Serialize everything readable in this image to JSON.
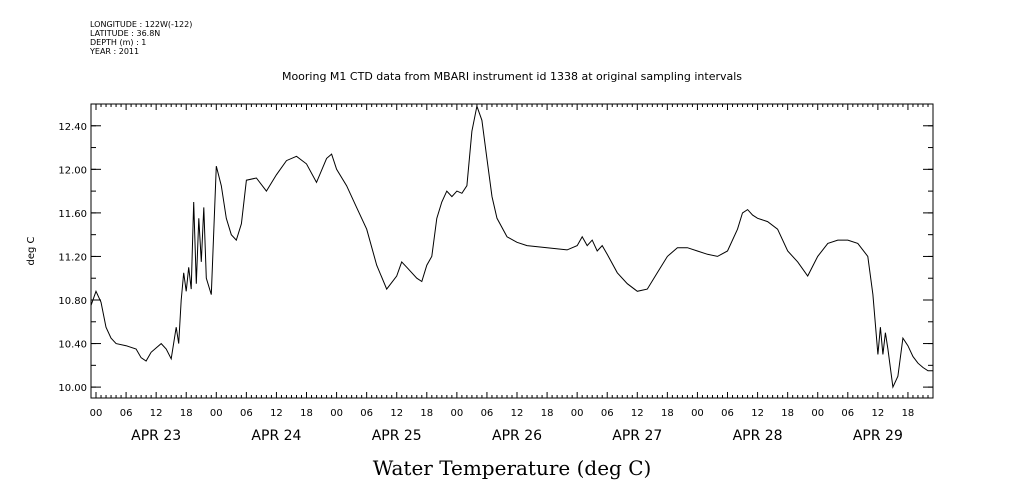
{
  "meta": {
    "longitude": "LONGITUDE : 122W(-122)",
    "latitude": "LATITUDE : 36.8N",
    "depth": "DEPTH (m) : 1",
    "year": "YEAR : 2011"
  },
  "chart_data": {
    "type": "line",
    "title": "Mooring M1 CTD data from MBARI instrument id 1338 at original sampling intervals",
    "xlabel": "Water Temperature (deg C)",
    "ylabel": "deg C",
    "ylim": [
      9.9,
      12.6
    ],
    "xlim": [
      "APR 22 23:00",
      "APR 29 23:00"
    ],
    "yticks": [
      "10.00",
      "10.40",
      "10.80",
      "11.20",
      "11.60",
      "12.00",
      "12.40"
    ],
    "xtick_hours": [
      "00",
      "06",
      "12",
      "18"
    ],
    "days": [
      "APR 23",
      "APR 24",
      "APR 25",
      "APR 26",
      "APR 27",
      "APR 28",
      "APR 29"
    ],
    "series": [
      {
        "points": [
          [
            "APR 22 23:00",
            10.75
          ],
          [
            "APR 23 00:00",
            10.88
          ],
          [
            "APR 23 01:00",
            10.78
          ],
          [
            "APR 23 02:00",
            10.55
          ],
          [
            "APR 23 03:00",
            10.45
          ],
          [
            "APR 23 04:00",
            10.4
          ],
          [
            "APR 23 06:00",
            10.38
          ],
          [
            "APR 23 08:00",
            10.35
          ],
          [
            "APR 23 09:00",
            10.27
          ],
          [
            "APR 23 10:00",
            10.24
          ],
          [
            "APR 23 11:00",
            10.32
          ],
          [
            "APR 23 12:00",
            10.36
          ],
          [
            "APR 23 13:00",
            10.4
          ],
          [
            "APR 23 14:00",
            10.35
          ],
          [
            "APR 23 15:00",
            10.26
          ],
          [
            "APR 23 16:00",
            10.55
          ],
          [
            "APR 23 16:30",
            10.4
          ],
          [
            "APR 23 17:00",
            10.8
          ],
          [
            "APR 23 17:30",
            11.05
          ],
          [
            "APR 23 18:00",
            10.88
          ],
          [
            "APR 23 18:30",
            11.1
          ],
          [
            "APR 23 19:00",
            10.9
          ],
          [
            "APR 23 19:30",
            11.7
          ],
          [
            "APR 23 20:00",
            10.95
          ],
          [
            "APR 23 20:30",
            11.55
          ],
          [
            "APR 23 21:00",
            11.15
          ],
          [
            "APR 23 21:30",
            11.65
          ],
          [
            "APR 23 22:00",
            11.0
          ],
          [
            "APR 23 23:00",
            10.85
          ],
          [
            "APR 24 00:00",
            12.03
          ],
          [
            "APR 24 01:00",
            11.85
          ],
          [
            "APR 24 02:00",
            11.55
          ],
          [
            "APR 24 03:00",
            11.4
          ],
          [
            "APR 24 04:00",
            11.35
          ],
          [
            "APR 24 05:00",
            11.5
          ],
          [
            "APR 24 06:00",
            11.9
          ],
          [
            "APR 24 08:00",
            11.92
          ],
          [
            "APR 24 10:00",
            11.8
          ],
          [
            "APR 24 12:00",
            11.95
          ],
          [
            "APR 24 14:00",
            12.08
          ],
          [
            "APR 24 16:00",
            12.12
          ],
          [
            "APR 24 18:00",
            12.05
          ],
          [
            "APR 24 20:00",
            11.88
          ],
          [
            "APR 24 22:00",
            12.1
          ],
          [
            "APR 24 23:00",
            12.14
          ],
          [
            "APR 25 00:00",
            12.0
          ],
          [
            "APR 25 02:00",
            11.85
          ],
          [
            "APR 25 04:00",
            11.65
          ],
          [
            "APR 25 06:00",
            11.45
          ],
          [
            "APR 25 08:00",
            11.12
          ],
          [
            "APR 25 10:00",
            10.9
          ],
          [
            "APR 25 12:00",
            11.02
          ],
          [
            "APR 25 13:00",
            11.15
          ],
          [
            "APR 25 14:00",
            11.1
          ],
          [
            "APR 25 16:00",
            11.0
          ],
          [
            "APR 25 17:00",
            10.97
          ],
          [
            "APR 25 18:00",
            11.12
          ],
          [
            "APR 25 19:00",
            11.2
          ],
          [
            "APR 25 20:00",
            11.55
          ],
          [
            "APR 25 21:00",
            11.7
          ],
          [
            "APR 25 22:00",
            11.8
          ],
          [
            "APR 25 23:00",
            11.75
          ],
          [
            "APR 26 00:00",
            11.8
          ],
          [
            "APR 26 01:00",
            11.78
          ],
          [
            "APR 26 02:00",
            11.85
          ],
          [
            "APR 26 03:00",
            12.35
          ],
          [
            "APR 26 04:00",
            12.58
          ],
          [
            "APR 26 05:00",
            12.45
          ],
          [
            "APR 26 06:00",
            12.1
          ],
          [
            "APR 26 07:00",
            11.75
          ],
          [
            "APR 26 08:00",
            11.55
          ],
          [
            "APR 26 10:00",
            11.38
          ],
          [
            "APR 26 12:00",
            11.33
          ],
          [
            "APR 26 14:00",
            11.3
          ],
          [
            "APR 26 18:00",
            11.28
          ],
          [
            "APR 26 22:00",
            11.26
          ],
          [
            "APR 27 00:00",
            11.3
          ],
          [
            "APR 27 01:00",
            11.38
          ],
          [
            "APR 27 02:00",
            11.3
          ],
          [
            "APR 27 03:00",
            11.35
          ],
          [
            "APR 27 04:00",
            11.25
          ],
          [
            "APR 27 05:00",
            11.3
          ],
          [
            "APR 27 06:00",
            11.22
          ],
          [
            "APR 27 08:00",
            11.05
          ],
          [
            "APR 27 10:00",
            10.95
          ],
          [
            "APR 27 12:00",
            10.88
          ],
          [
            "APR 27 14:00",
            10.9
          ],
          [
            "APR 27 16:00",
            11.05
          ],
          [
            "APR 27 18:00",
            11.2
          ],
          [
            "APR 27 20:00",
            11.28
          ],
          [
            "APR 27 22:00",
            11.28
          ],
          [
            "APR 28 00:00",
            11.25
          ],
          [
            "APR 28 02:00",
            11.22
          ],
          [
            "APR 28 04:00",
            11.2
          ],
          [
            "APR 28 06:00",
            11.25
          ],
          [
            "APR 28 08:00",
            11.45
          ],
          [
            "APR 28 09:00",
            11.6
          ],
          [
            "APR 28 10:00",
            11.63
          ],
          [
            "APR 28 11:00",
            11.58
          ],
          [
            "APR 28 12:00",
            11.55
          ],
          [
            "APR 28 14:00",
            11.52
          ],
          [
            "APR 28 16:00",
            11.45
          ],
          [
            "APR 28 18:00",
            11.25
          ],
          [
            "APR 28 20:00",
            11.15
          ],
          [
            "APR 28 22:00",
            11.02
          ],
          [
            "APR 29 00:00",
            11.2
          ],
          [
            "APR 29 02:00",
            11.32
          ],
          [
            "APR 29 04:00",
            11.35
          ],
          [
            "APR 29 06:00",
            11.35
          ],
          [
            "APR 29 08:00",
            11.32
          ],
          [
            "APR 29 10:00",
            11.2
          ],
          [
            "APR 29 11:00",
            10.85
          ],
          [
            "APR 29 12:00",
            10.3
          ],
          [
            "APR 29 12:30",
            10.55
          ],
          [
            "APR 29 13:00",
            10.3
          ],
          [
            "APR 29 13:30",
            10.5
          ],
          [
            "APR 29 14:00",
            10.35
          ],
          [
            "APR 29 15:00",
            10.0
          ],
          [
            "APR 29 16:00",
            10.1
          ],
          [
            "APR 29 17:00",
            10.45
          ],
          [
            "APR 29 18:00",
            10.38
          ],
          [
            "APR 29 19:00",
            10.28
          ],
          [
            "APR 29 20:00",
            10.22
          ],
          [
            "APR 29 21:00",
            10.18
          ],
          [
            "APR 29 22:00",
            10.15
          ],
          [
            "APR 29 23:00",
            10.15
          ]
        ]
      }
    ],
    "grid": false,
    "legend": "none"
  }
}
